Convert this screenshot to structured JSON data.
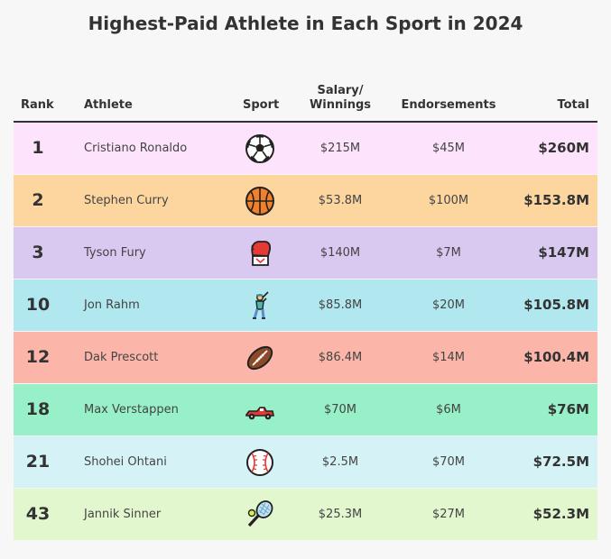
{
  "chart_data": {
    "type": "table",
    "title": "Highest-Paid Athlete in Each Sport in 2024",
    "columns": [
      "Rank",
      "Athlete",
      "Sport",
      "Salary/",
      "Winnings",
      "Endorsements",
      "Total"
    ],
    "rows": [
      {
        "rank": "1",
        "athlete": "Cristiano Ronaldo",
        "sport_icon": "soccer-ball-icon",
        "salary": "$215M",
        "endorsements": "$45M",
        "total": "$260M",
        "color": "#fde3fb"
      },
      {
        "rank": "2",
        "athlete": "Stephen Curry",
        "sport_icon": "basketball-icon",
        "salary": "$53.8M",
        "endorsements": "$100M",
        "total": "$153.8M",
        "color": "#fdd69f"
      },
      {
        "rank": "3",
        "athlete": "Tyson Fury",
        "sport_icon": "boxing-glove-icon",
        "salary": "$140M",
        "endorsements": "$7M",
        "total": "$147M",
        "color": "#d9c8ef"
      },
      {
        "rank": "10",
        "athlete": "Jon Rahm",
        "sport_icon": "golfer-icon",
        "salary": "$85.8M",
        "endorsements": "$20M",
        "total": "$105.8M",
        "color": "#b1e7ee"
      },
      {
        "rank": "12",
        "athlete": "Dak Prescott",
        "sport_icon": "american-football-icon",
        "salary": "$86.4M",
        "endorsements": "$14M",
        "total": "$100.4M",
        "color": "#fcb6a9"
      },
      {
        "rank": "18",
        "athlete": "Max Verstappen",
        "sport_icon": "race-car-icon",
        "salary": "$70M",
        "endorsements": "$6M",
        "total": "$76M",
        "color": "#98f0c8"
      },
      {
        "rank": "21",
        "athlete": "Shohei Ohtani",
        "sport_icon": "baseball-icon",
        "salary": "$2.5M",
        "endorsements": "$70M",
        "total": "$72.5M",
        "color": "#d5f3f6"
      },
      {
        "rank": "43",
        "athlete": "Jannik Sinner",
        "sport_icon": "tennis-icon",
        "salary": "$25.3M",
        "endorsements": "$27M",
        "total": "$52.3M",
        "color": "#e3f7cf"
      }
    ]
  }
}
